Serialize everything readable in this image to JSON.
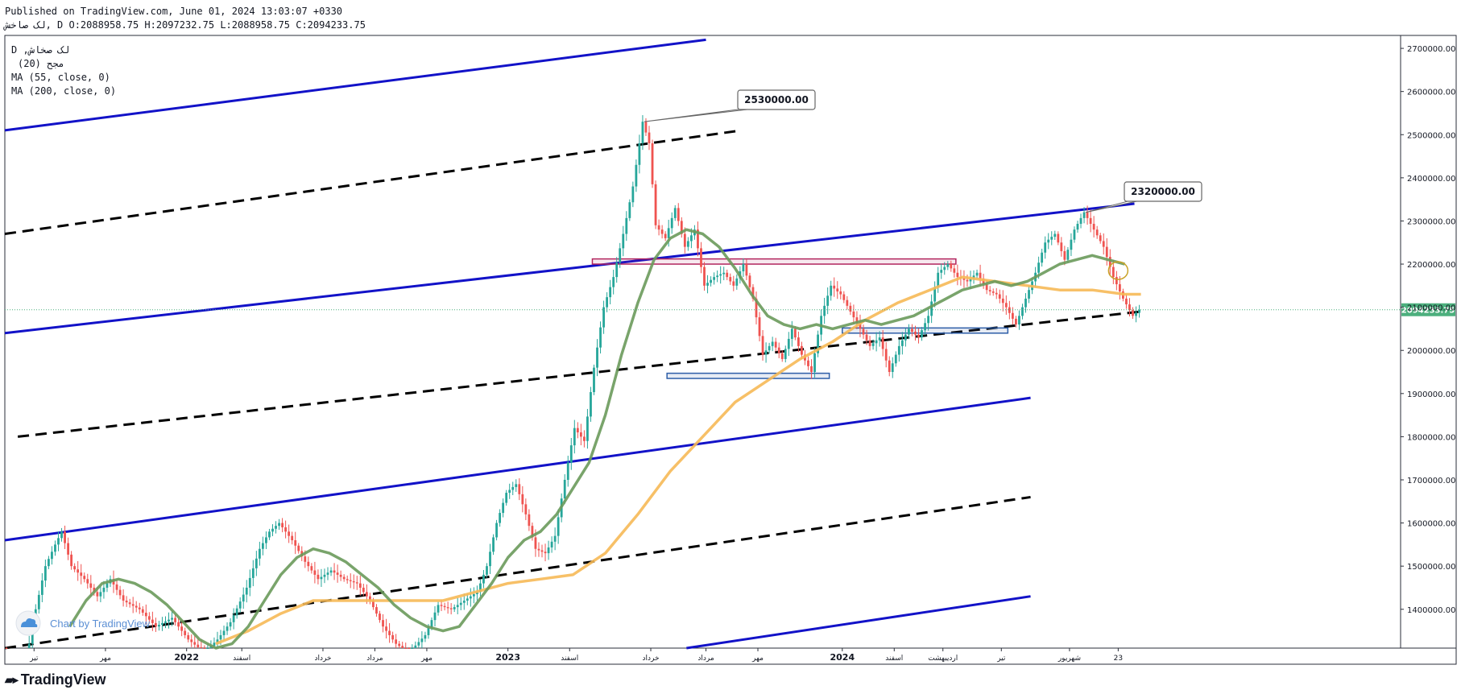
{
  "header": {
    "published": "Published on TradingView.com, June 01, 2024 13:03:07 +0330",
    "ohlc": "لک صاخش, D O:2088958.75 H:2097232.75 L:2088958.75 C:2094233.75"
  },
  "legend": {
    "symbol": "D ,لک صخاش",
    "indicator1": "(20) مجح",
    "indicator2": "MA (55, close, 0)",
    "indicator3": "MA (200, close, 0)"
  },
  "colors": {
    "up": "#26a69a",
    "down": "#ef5350",
    "ma55": "#6a9a5b",
    "ma200": "#f6b956",
    "channel": "#1212c8",
    "midline": "#000000",
    "resistance": "#b2255e",
    "support": "#2e5ea8",
    "price_badge": "#4caf7d"
  },
  "watermark": {
    "text": "Chart by TradingView"
  },
  "footer": {
    "brand": "TradingView"
  },
  "chart_data": {
    "type": "candlestick",
    "interval": "D",
    "ylim": [
      1310000,
      2730000
    ],
    "y_ticks": [
      1400000,
      1500000,
      1600000,
      1700000,
      1800000,
      1900000,
      2000000,
      2100000,
      2200000,
      2300000,
      2400000,
      2500000,
      2600000,
      2700000
    ],
    "y_tick_labels": [
      "1400000.00",
      "1500000.00",
      "1600000.00",
      "1700000.00",
      "1800000.00",
      "1900000.00",
      "2000000.00",
      "2100000.00",
      "2200000.00",
      "2300000.00",
      "2400000.00",
      "2500000.00",
      "2600000.00",
      "2700000.00"
    ],
    "x_ticks": [
      "تیر",
      "مهر",
      "2022",
      "اسفند",
      "خرداد",
      "مرداد",
      "مهر",
      "2023",
      "اسفند",
      "خرداد",
      "مرداد",
      "مهر",
      "2024",
      "اسفند",
      "اردیبهشت",
      "تیر",
      "شهریور",
      "23"
    ],
    "last_price": 2094233.75,
    "last_price_label": "2094233.75",
    "annotations": [
      {
        "text": "2530000.00",
        "value": 2530000
      },
      {
        "text": "2320000.00",
        "value": 2320000
      }
    ],
    "price_path": [
      [
        0,
        1300000
      ],
      [
        3,
        1250000
      ],
      [
        7,
        1280000
      ],
      [
        10,
        1400000
      ],
      [
        13,
        1500000
      ],
      [
        16,
        1550000
      ],
      [
        18,
        1580000
      ],
      [
        21,
        1500000
      ],
      [
        25,
        1470000
      ],
      [
        29,
        1430000
      ],
      [
        33,
        1470000
      ],
      [
        37,
        1420000
      ],
      [
        42,
        1400000
      ],
      [
        47,
        1360000
      ],
      [
        52,
        1380000
      ],
      [
        57,
        1330000
      ],
      [
        62,
        1300000
      ],
      [
        66,
        1330000
      ],
      [
        70,
        1370000
      ],
      [
        75,
        1450000
      ],
      [
        79,
        1540000
      ],
      [
        82,
        1580000
      ],
      [
        85,
        1600000
      ],
      [
        89,
        1560000
      ],
      [
        93,
        1510000
      ],
      [
        97,
        1470000
      ],
      [
        101,
        1490000
      ],
      [
        105,
        1470000
      ],
      [
        109,
        1460000
      ],
      [
        113,
        1420000
      ],
      [
        117,
        1360000
      ],
      [
        121,
        1320000
      ],
      [
        125,
        1300000
      ],
      [
        130,
        1340000
      ],
      [
        134,
        1410000
      ],
      [
        138,
        1400000
      ],
      [
        142,
        1420000
      ],
      [
        146,
        1440000
      ],
      [
        149,
        1500000
      ],
      [
        152,
        1600000
      ],
      [
        155,
        1670000
      ],
      [
        158,
        1690000
      ],
      [
        161,
        1620000
      ],
      [
        164,
        1540000
      ],
      [
        167,
        1530000
      ],
      [
        170,
        1570000
      ],
      [
        173,
        1700000
      ],
      [
        176,
        1820000
      ],
      [
        179,
        1790000
      ],
      [
        182,
        1960000
      ],
      [
        185,
        2100000
      ],
      [
        188,
        2170000
      ],
      [
        191,
        2270000
      ],
      [
        194,
        2380000
      ],
      [
        197,
        2530000
      ],
      [
        199,
        2480000
      ],
      [
        201,
        2290000
      ],
      [
        204,
        2260000
      ],
      [
        207,
        2330000
      ],
      [
        210,
        2240000
      ],
      [
        213,
        2280000
      ],
      [
        216,
        2150000
      ],
      [
        219,
        2170000
      ],
      [
        222,
        2180000
      ],
      [
        225,
        2150000
      ],
      [
        228,
        2200000
      ],
      [
        231,
        2120000
      ],
      [
        234,
        1990000
      ],
      [
        237,
        2020000
      ],
      [
        240,
        1980000
      ],
      [
        243,
        2050000
      ],
      [
        246,
        1990000
      ],
      [
        249,
        1950000
      ],
      [
        252,
        2080000
      ],
      [
        255,
        2150000
      ],
      [
        258,
        2130000
      ],
      [
        261,
        2090000
      ],
      [
        264,
        2050000
      ],
      [
        267,
        2010000
      ],
      [
        270,
        2030000
      ],
      [
        273,
        1950000
      ],
      [
        276,
        2010000
      ],
      [
        279,
        2050000
      ],
      [
        282,
        2030000
      ],
      [
        285,
        2080000
      ],
      [
        288,
        2180000
      ],
      [
        291,
        2200000
      ],
      [
        294,
        2170000
      ],
      [
        297,
        2160000
      ],
      [
        300,
        2180000
      ],
      [
        303,
        2140000
      ],
      [
        306,
        2130000
      ],
      [
        309,
        2100000
      ],
      [
        312,
        2060000
      ],
      [
        315,
        2120000
      ],
      [
        318,
        2180000
      ],
      [
        321,
        2250000
      ],
      [
        324,
        2270000
      ],
      [
        327,
        2210000
      ],
      [
        330,
        2280000
      ],
      [
        333,
        2320000
      ],
      [
        336,
        2280000
      ],
      [
        339,
        2240000
      ],
      [
        342,
        2170000
      ],
      [
        345,
        2120000
      ],
      [
        348,
        2080000
      ],
      [
        350,
        2094233.75
      ]
    ],
    "ma55_path": [
      [
        20,
        1360000
      ],
      [
        25,
        1420000
      ],
      [
        30,
        1460000
      ],
      [
        35,
        1470000
      ],
      [
        40,
        1460000
      ],
      [
        45,
        1440000
      ],
      [
        50,
        1410000
      ],
      [
        55,
        1370000
      ],
      [
        60,
        1330000
      ],
      [
        65,
        1310000
      ],
      [
        70,
        1320000
      ],
      [
        75,
        1360000
      ],
      [
        80,
        1420000
      ],
      [
        85,
        1480000
      ],
      [
        90,
        1520000
      ],
      [
        95,
        1540000
      ],
      [
        100,
        1530000
      ],
      [
        105,
        1510000
      ],
      [
        110,
        1480000
      ],
      [
        115,
        1450000
      ],
      [
        120,
        1410000
      ],
      [
        125,
        1380000
      ],
      [
        130,
        1360000
      ],
      [
        135,
        1350000
      ],
      [
        140,
        1360000
      ],
      [
        145,
        1410000
      ],
      [
        150,
        1460000
      ],
      [
        155,
        1520000
      ],
      [
        160,
        1560000
      ],
      [
        165,
        1580000
      ],
      [
        170,
        1620000
      ],
      [
        175,
        1680000
      ],
      [
        180,
        1740000
      ],
      [
        185,
        1850000
      ],
      [
        190,
        1990000
      ],
      [
        195,
        2110000
      ],
      [
        200,
        2210000
      ],
      [
        205,
        2260000
      ],
      [
        210,
        2280000
      ],
      [
        215,
        2270000
      ],
      [
        220,
        2240000
      ],
      [
        225,
        2190000
      ],
      [
        230,
        2130000
      ],
      [
        235,
        2080000
      ],
      [
        240,
        2060000
      ],
      [
        245,
        2050000
      ],
      [
        250,
        2060000
      ],
      [
        255,
        2050000
      ],
      [
        260,
        2060000
      ],
      [
        265,
        2070000
      ],
      [
        270,
        2060000
      ],
      [
        275,
        2070000
      ],
      [
        280,
        2080000
      ],
      [
        285,
        2100000
      ],
      [
        290,
        2120000
      ],
      [
        295,
        2140000
      ],
      [
        300,
        2150000
      ],
      [
        305,
        2160000
      ],
      [
        310,
        2150000
      ],
      [
        315,
        2160000
      ],
      [
        320,
        2180000
      ],
      [
        325,
        2200000
      ],
      [
        330,
        2210000
      ],
      [
        335,
        2220000
      ],
      [
        340,
        2210000
      ],
      [
        345,
        2200000
      ]
    ],
    "ma200_path": [
      [
        65,
        1320000
      ],
      [
        75,
        1350000
      ],
      [
        85,
        1390000
      ],
      [
        95,
        1420000
      ],
      [
        110,
        1420000
      ],
      [
        125,
        1420000
      ],
      [
        135,
        1420000
      ],
      [
        145,
        1440000
      ],
      [
        155,
        1460000
      ],
      [
        165,
        1470000
      ],
      [
        175,
        1480000
      ],
      [
        185,
        1530000
      ],
      [
        195,
        1620000
      ],
      [
        205,
        1720000
      ],
      [
        215,
        1800000
      ],
      [
        225,
        1880000
      ],
      [
        235,
        1930000
      ],
      [
        245,
        1980000
      ],
      [
        255,
        2020000
      ],
      [
        265,
        2070000
      ],
      [
        275,
        2110000
      ],
      [
        285,
        2140000
      ],
      [
        295,
        2170000
      ],
      [
        305,
        2160000
      ],
      [
        315,
        2150000
      ],
      [
        325,
        2140000
      ],
      [
        335,
        2140000
      ],
      [
        345,
        2130000
      ],
      [
        350,
        2130000
      ]
    ],
    "channels": [
      {
        "style": "solid",
        "from": [
          0,
          2510000
        ],
        "to": [
          216,
          2720000
        ]
      },
      {
        "style": "dashed",
        "from": [
          0,
          2270000
        ],
        "to": [
          227,
          2510000
        ]
      },
      {
        "style": "solid",
        "from": [
          0,
          2040000
        ],
        "to": [
          348,
          2340000
        ]
      },
      {
        "style": "dashed",
        "from": [
          4,
          1800000
        ],
        "to": [
          350,
          2090000
        ]
      },
      {
        "style": "solid",
        "from": [
          0,
          1560000
        ],
        "to": [
          316,
          1890000
        ]
      },
      {
        "style": "dashed",
        "from": [
          0,
          1310000
        ],
        "to": [
          316,
          1660000
        ]
      },
      {
        "style": "solid",
        "from": [
          210,
          1310000
        ],
        "to": [
          316,
          1430000
        ]
      }
    ],
    "zones": [
      {
        "kind": "resistance",
        "x0": 181,
        "x1": 293,
        "y0": 2200000,
        "y1": 2212000
      },
      {
        "kind": "support",
        "x0": 204,
        "x1": 254,
        "y0": 1935000,
        "y1": 1947000
      },
      {
        "kind": "support",
        "x0": 258,
        "x1": 309,
        "y0": 2040000,
        "y1": 2052000
      }
    ]
  }
}
